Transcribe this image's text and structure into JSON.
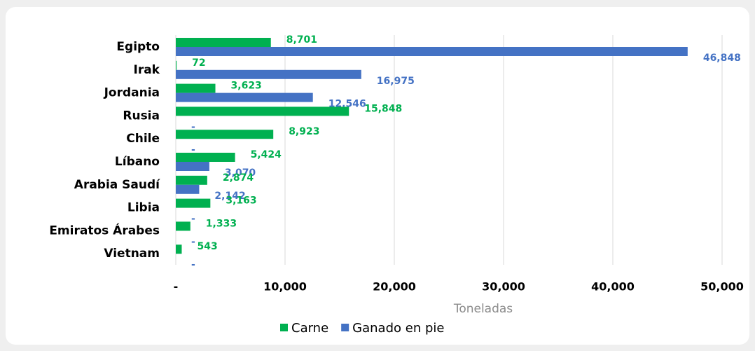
{
  "chart_data": {
    "type": "hbar",
    "categories": [
      "Egipto",
      "Irak",
      "Jordania",
      "Rusia",
      "Chile",
      "Líbano",
      "Arabia Saudí",
      "Libia",
      "Emiratos Árabes",
      "Vietnam"
    ],
    "series": [
      {
        "name": "Carne",
        "color": "#00b050",
        "values": [
          8701,
          72,
          3623,
          15848,
          8923,
          5424,
          2874,
          3163,
          1333,
          543
        ],
        "value_labels": [
          "8,701",
          "72",
          "3,623",
          "15,848",
          "8,923",
          "5,424",
          "2,874",
          "3,163",
          "1,333",
          "543"
        ]
      },
      {
        "name": "Ganado en pie",
        "color": "#4472c4",
        "values": [
          46848,
          16975,
          12546,
          0,
          0,
          3070,
          2142,
          0,
          0,
          0
        ],
        "value_labels": [
          "46,848",
          "16,975",
          "12,546",
          "-",
          "-",
          "3,070",
          "2,142",
          "-",
          "-",
          "-"
        ]
      }
    ],
    "x_label": "Toneladas",
    "xlim": [
      0,
      50000
    ],
    "xticks": [
      {
        "value": 0,
        "label": "-"
      },
      {
        "value": 10000,
        "label": "10,000"
      },
      {
        "value": 20000,
        "label": "20,000"
      },
      {
        "value": 30000,
        "label": "30,000"
      },
      {
        "value": 40000,
        "label": "40,000"
      },
      {
        "value": 50000,
        "label": "50,000"
      }
    ],
    "grid": true,
    "legend": "bottom"
  }
}
